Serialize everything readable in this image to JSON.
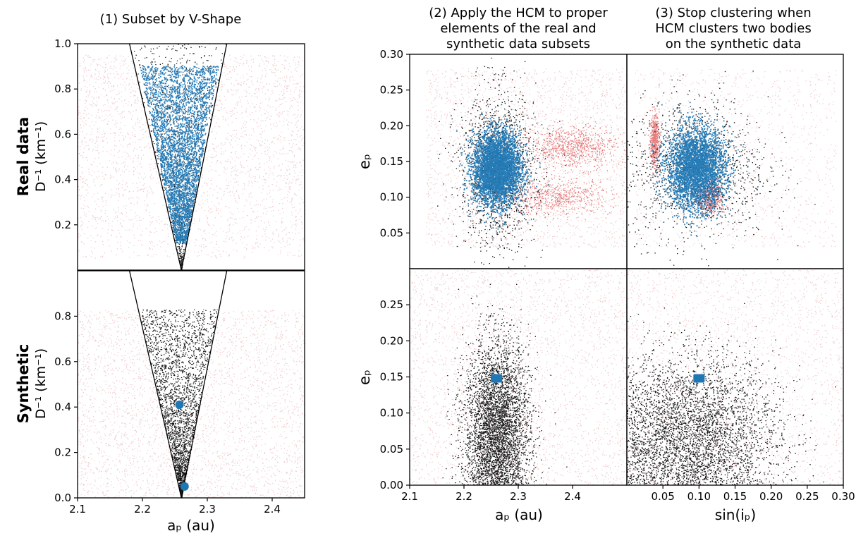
{
  "figure": {
    "col1_title": "(1) Subset by V-Shape",
    "col2_title": [
      "(2) Apply the HCM to proper",
      "elements of the real and",
      "synthetic data subsets"
    ],
    "col3_title": [
      "(3) Stop clustering when",
      "HCM clusters two bodies",
      "on the synthetic data"
    ],
    "row1_label": "Real data",
    "row2_label": "Synthetic",
    "left_ylabel": "D⁻¹ (km⁻¹)",
    "left_xlabel": "aₚ (au)",
    "mid_xlabel": "aₚ (au)",
    "right_xlabel": "sin(iₚ)",
    "ep_label": "eₚ"
  },
  "colors": {
    "background_points": "#e8a0a0",
    "selected_points": "#000000",
    "cluster_points": "#1f77b4",
    "dense_red": "#d62728"
  },
  "chart_data": [
    {
      "type": "scatter",
      "panel": "real-vshape",
      "xlabel": "",
      "ylabel": "D⁻¹ (km⁻¹)",
      "xlim": [
        2.1,
        2.45
      ],
      "ylim": [
        0.0,
        1.0
      ],
      "yticks": [
        "0.2",
        "0.4",
        "0.6",
        "0.8",
        "1.0"
      ],
      "vshape": {
        "apex": [
          2.26,
          0.0
        ],
        "left_top": [
          2.18,
          1.0
        ],
        "right_top": [
          2.33,
          1.0
        ]
      },
      "cluster": {
        "a_center": 2.26,
        "D_inv_range": [
          0.2,
          0.9
        ]
      }
    },
    {
      "type": "scatter",
      "panel": "synthetic-vshape",
      "xlabel": "aₚ (au)",
      "ylabel": "D⁻¹ (km⁻¹)",
      "xlim": [
        2.1,
        2.45
      ],
      "ylim": [
        0.0,
        1.0
      ],
      "xticks": [
        "2.1",
        "2.2",
        "2.3",
        "2.4"
      ],
      "yticks": [
        "0.0",
        "0.2",
        "0.4",
        "0.6",
        "0.8"
      ],
      "data_ceiling": 0.83,
      "highlighted_bodies": [
        {
          "a": 2.257,
          "D_inv": 0.41
        },
        {
          "a": 2.265,
          "D_inv": 0.05
        }
      ]
    },
    {
      "type": "scatter",
      "panel": "real-ap-ep",
      "xlim": [
        2.1,
        2.5
      ],
      "ylim": [
        0.0,
        0.3
      ],
      "yticks": [
        "0.05",
        "0.10",
        "0.15",
        "0.20",
        "0.25",
        "0.30"
      ],
      "cluster_center": {
        "a": 2.26,
        "e": 0.14
      }
    },
    {
      "type": "scatter",
      "panel": "real-sini-ep",
      "xlim": [
        0.0,
        0.3
      ],
      "ylim": [
        0.0,
        0.3
      ],
      "cluster_center": {
        "sin_i": 0.095,
        "e": 0.14
      }
    },
    {
      "type": "scatter",
      "panel": "synthetic-ap-ep",
      "xlim": [
        2.1,
        2.5
      ],
      "ylim": [
        0.0,
        0.3
      ],
      "xticks": [
        "2.1",
        "2.2",
        "2.3",
        "2.4"
      ],
      "yticks": [
        "0.00",
        "0.05",
        "0.10",
        "0.15",
        "0.20",
        "0.25"
      ],
      "clustered_pair": {
        "a": 2.26,
        "e": 0.148
      }
    },
    {
      "type": "scatter",
      "panel": "synthetic-sini-ep",
      "xlim": [
        0.0,
        0.3
      ],
      "ylim": [
        0.0,
        0.3
      ],
      "xticks": [
        "0.05",
        "0.10",
        "0.15",
        "0.20",
        "0.25",
        "0.30"
      ],
      "clustered_pair": {
        "sin_i": 0.1,
        "e": 0.148
      }
    }
  ]
}
